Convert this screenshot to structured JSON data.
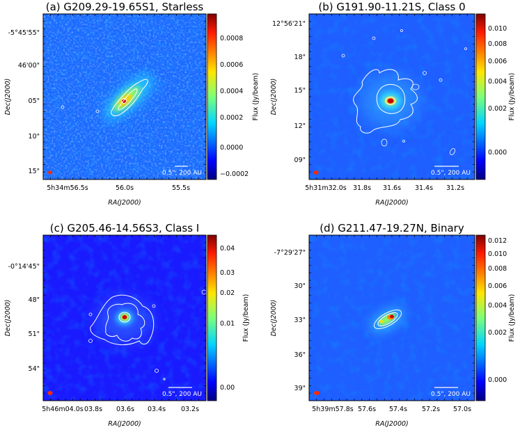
{
  "chart_data": [
    {
      "type": "heatmap",
      "title": "(a) G209.29-19.65S1, Starless",
      "xlabel": "RA(J2000)",
      "ylabel": "Dec(J2000)",
      "xticks": [
        "5h34m56.5s",
        "56.0s",
        "55.5s"
      ],
      "yticks": [
        "-5°45'55\"",
        "46'00\"",
        "05\"",
        "10\"",
        "15\""
      ],
      "colorbar_label": "Flux (Jy/beam)",
      "colorbar_ticks": [
        "0.0008",
        "0.0006",
        "0.0004",
        "0.0002",
        "0.0000",
        "−0.0002"
      ],
      "colorbar_range": [
        -0.00028,
        0.00095
      ],
      "scale_bar": "0.5\", 200 AU",
      "source_peak": 0.00095
    },
    {
      "type": "heatmap",
      "title": "(b) G191.90-11.21S, Class 0",
      "xlabel": "RA(J2000)",
      "ylabel": "Dec(J2000)",
      "xticks": [
        "5h31m32.0s",
        "31.8s",
        "31.6s",
        "31.4s",
        "31.2s"
      ],
      "yticks": [
        "12°56'21\"",
        "18\"",
        "15\"",
        "12\"",
        "09\""
      ],
      "colorbar_label": "Flux (Jy/beam)",
      "colorbar_ticks": [
        "0.010",
        "0.008",
        "0.006",
        "0.004",
        "0.002",
        "0.000"
      ],
      "colorbar_range": [
        -0.0012,
        0.011
      ],
      "scale_bar": "0.5\", 200 AU",
      "source_peak": 0.011
    },
    {
      "type": "heatmap",
      "title": "(c) G205.46-14.56S3, Class I",
      "xlabel": "RA(J2000)",
      "ylabel": "Dec(J2000)",
      "xticks": [
        "5h46m04.0s",
        "03.8s",
        "03.6s",
        "03.4s",
        "03.2s"
      ],
      "yticks": [
        "-0°14'45\"",
        "48\"",
        "51\"",
        "54\""
      ],
      "colorbar_label": "Flux (Jy/beam)",
      "colorbar_ticks": [
        "0.04",
        "0.03",
        "0.02",
        "0.01",
        "0.00"
      ],
      "colorbar_range": [
        -0.004,
        0.045
      ],
      "scale_bar": "0.5\", 200 AU",
      "source_peak": 0.045
    },
    {
      "type": "heatmap",
      "title": "(d) G211.47-19.27N, Binary",
      "xlabel": "RA(J2000)",
      "ylabel": "Dec(J2000)",
      "xticks": [
        "5h39m57.8s",
        "57.6s",
        "57.4s",
        "57.2s",
        "57.0s"
      ],
      "yticks": [
        "-7°29'27\"",
        "30\"",
        "33\"",
        "36\"",
        "39\""
      ],
      "colorbar_label": "Flux (Jy/beam)",
      "colorbar_ticks": [
        "0.012",
        "0.010",
        "0.008",
        "0.006",
        "0.004",
        "0.002",
        "0.000"
      ],
      "colorbar_range": [
        -0.0015,
        0.0125
      ],
      "scale_bar": "0.5\", 200 AU",
      "source_peak": 0.0125
    }
  ]
}
